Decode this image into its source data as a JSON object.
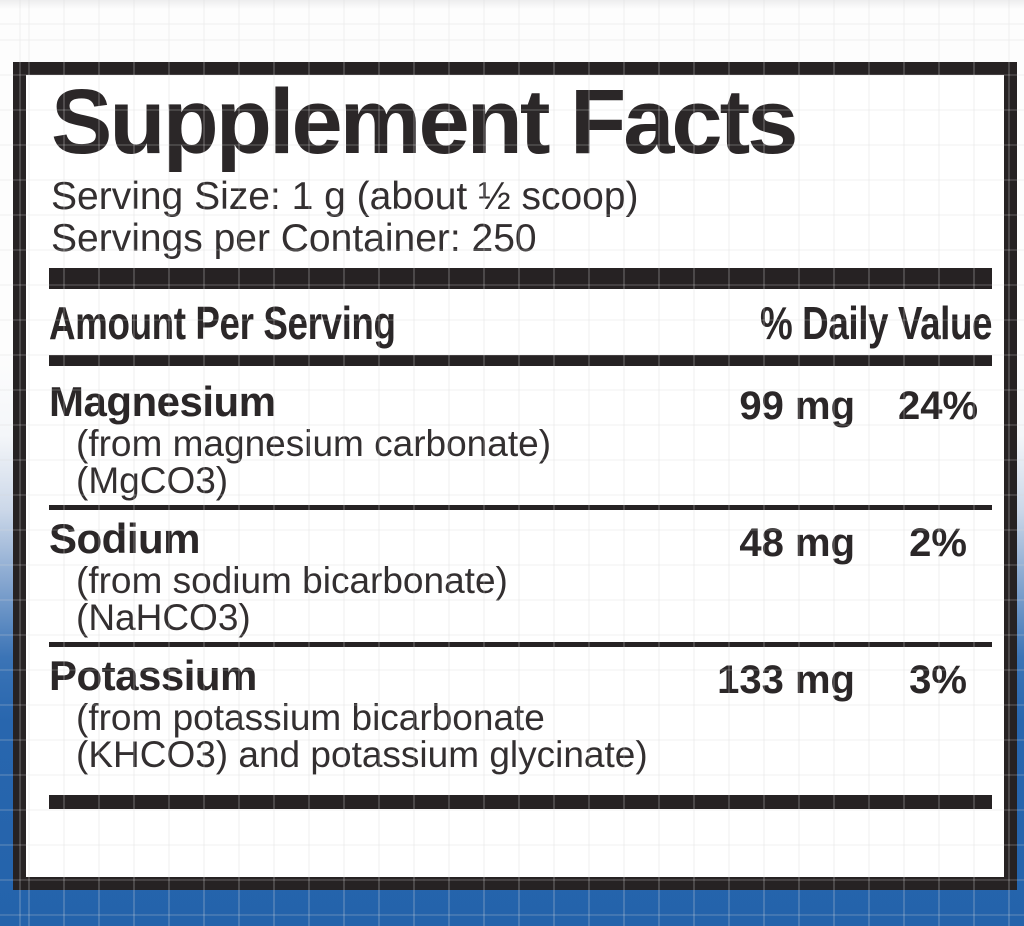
{
  "label": {
    "title": "Supplement Facts",
    "serving_size": "Serving Size: 1 g (about ½ scoop)",
    "servings_per_container": "Servings per Container: 250",
    "columns": {
      "amount_header": "Amount Per Serving",
      "dv_header": "% Daily Value"
    },
    "nutrients": [
      {
        "name": "Magnesium",
        "amount": "99 mg",
        "dv": "24%",
        "details": [
          "(from magnesium carbonate)",
          "(MgCO3)"
        ]
      },
      {
        "name": "Sodium",
        "amount": "48 mg",
        "dv": "2%",
        "details": [
          "(from sodium bicarbonate)",
          "(NaHCO3)"
        ]
      },
      {
        "name": "Potassium",
        "amount": "133 mg",
        "dv": "3%",
        "details": [
          "(from potassium bicarbonate",
          "(KHCO3) and potassium glycinate)"
        ]
      }
    ]
  },
  "colors": {
    "label_ink": "#262223",
    "panel_background": "#ffffff",
    "backdrop_blue": "#2765af"
  }
}
